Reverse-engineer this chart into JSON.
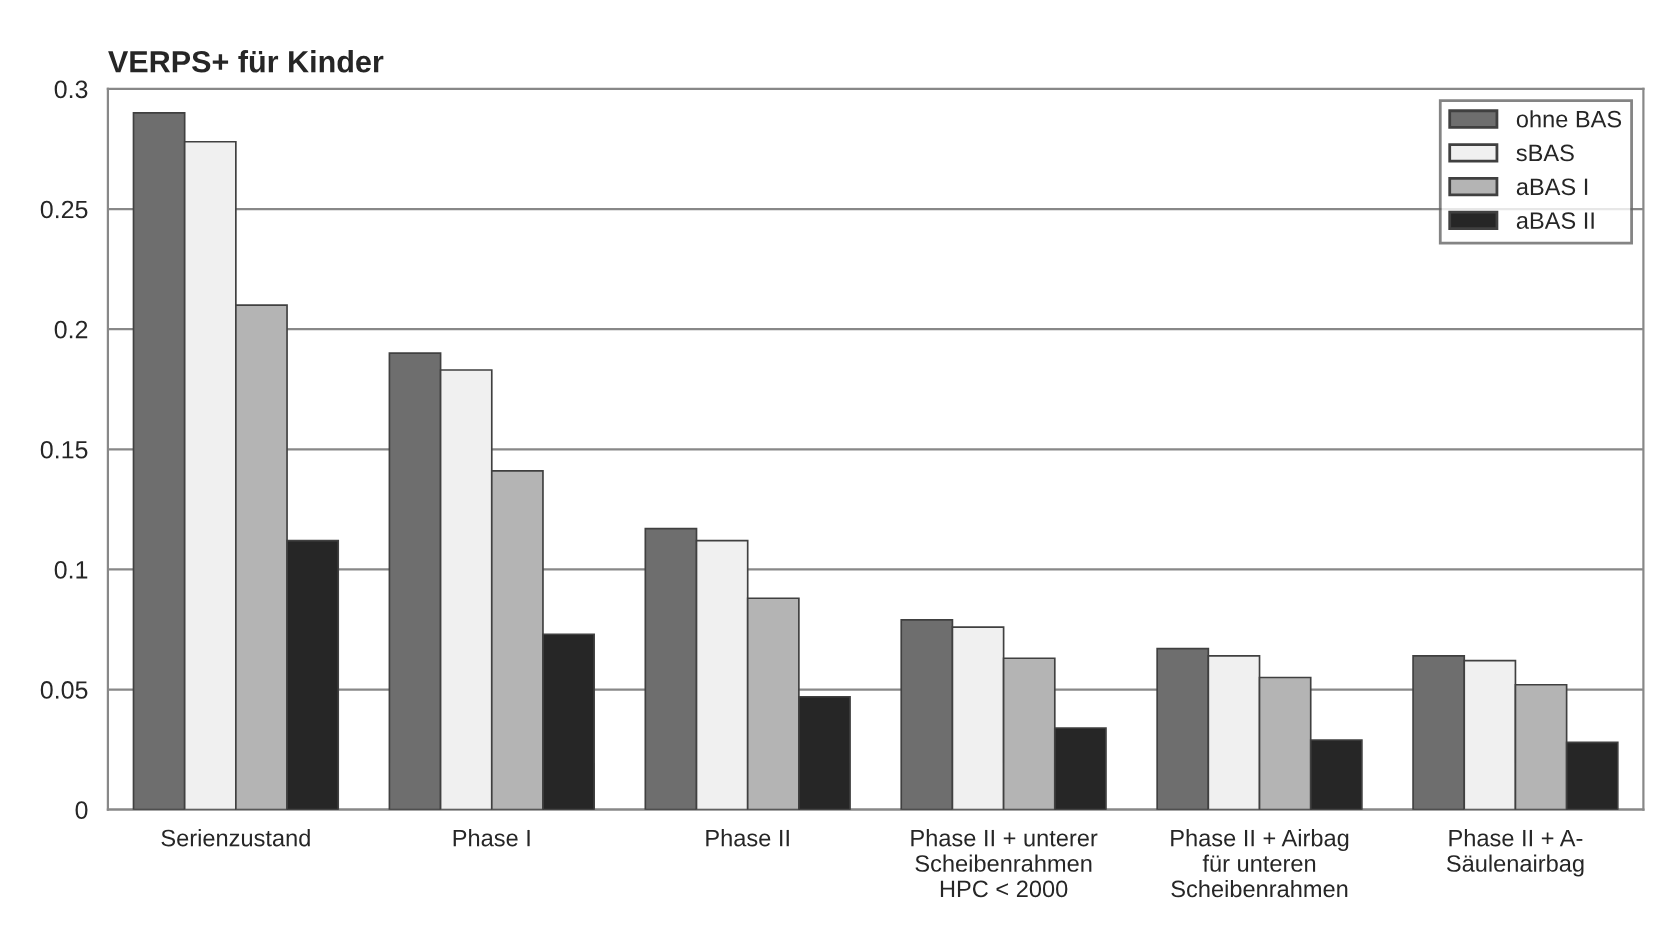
{
  "chart_data": {
    "type": "bar",
    "title": "VERPS+ für Kinder",
    "categories": [
      "Serienzustand",
      "Phase I",
      "Phase II",
      "Phase II + unterer\nScheibenrahmen\nHPC < 2000",
      "Phase II + Airbag\nfür unteren\nScheibenrahmen",
      "Phase II + A-\nSäulenairbag"
    ],
    "series": [
      {
        "name": "ohne BAS",
        "color": "#6e6e6e",
        "values": [
          0.29,
          0.19,
          0.117,
          0.079,
          0.067,
          0.064
        ]
      },
      {
        "name": "sBAS",
        "color": "#f0f0f0",
        "values": [
          0.278,
          0.183,
          0.112,
          0.076,
          0.064,
          0.062
        ]
      },
      {
        "name": "aBAS I",
        "color": "#b4b4b4",
        "values": [
          0.21,
          0.141,
          0.088,
          0.063,
          0.055,
          0.052
        ]
      },
      {
        "name": "aBAS II",
        "color": "#262626",
        "values": [
          0.112,
          0.073,
          0.047,
          0.034,
          0.029,
          0.028
        ]
      }
    ],
    "ylim": [
      0,
      0.3
    ],
    "yticks": [
      0,
      0.05,
      0.1,
      0.15,
      0.2,
      0.25,
      0.3
    ],
    "grid": "y",
    "legend": "top right"
  }
}
